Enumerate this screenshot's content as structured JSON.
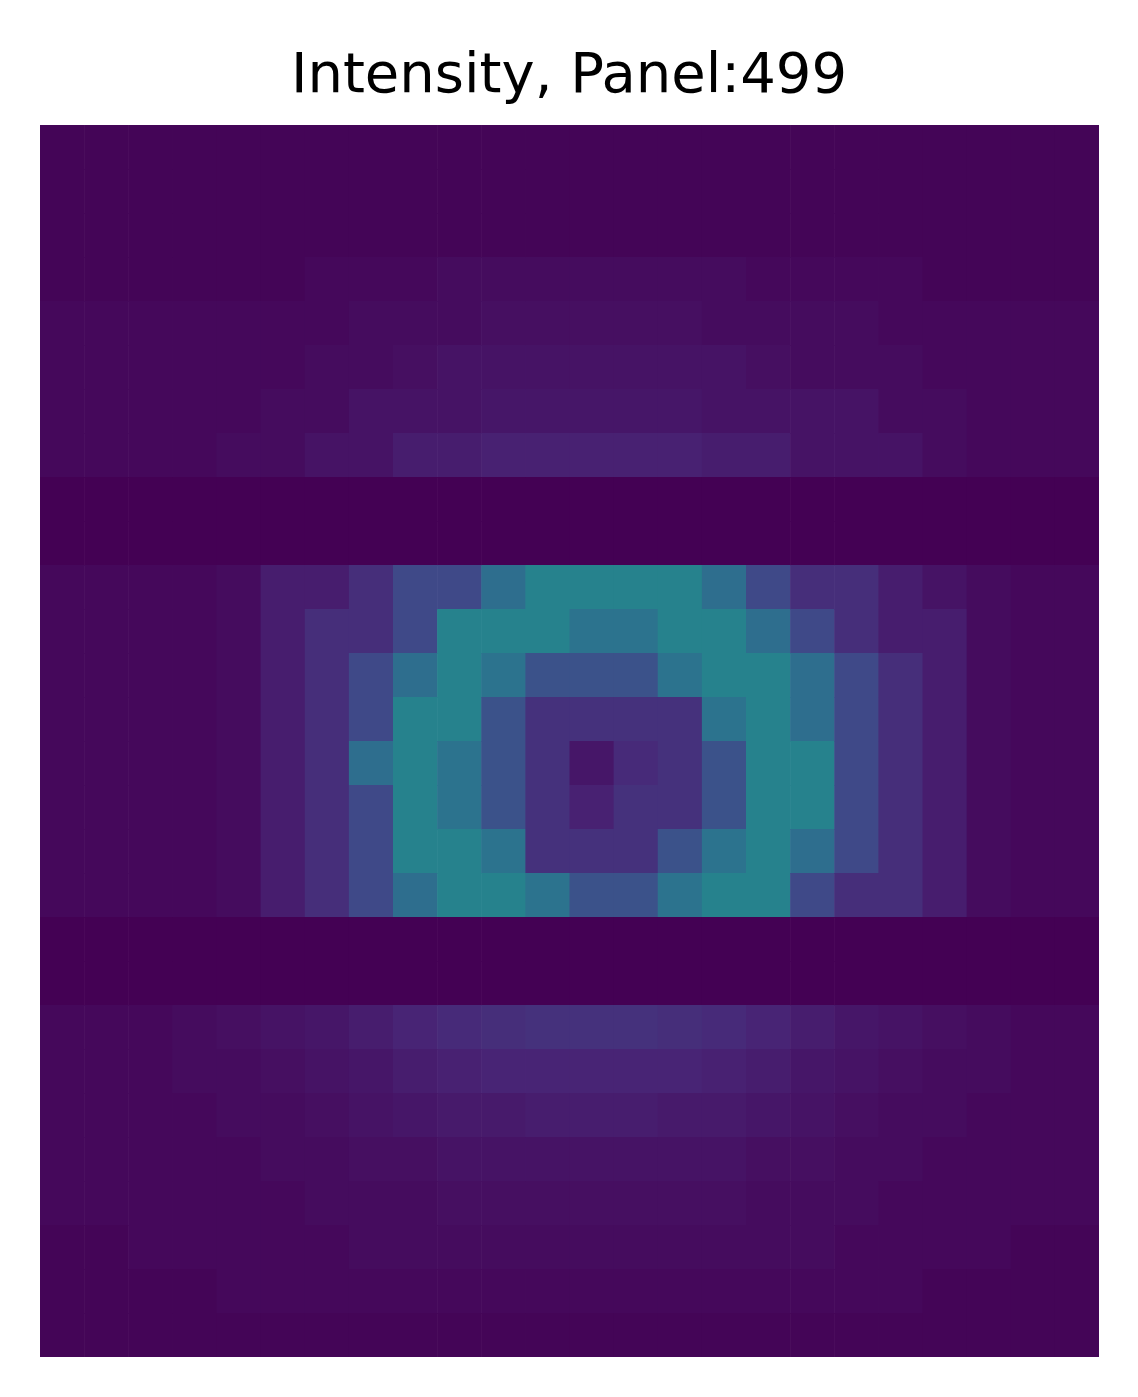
{
  "chart_data": {
    "type": "heatmap",
    "title": "Intensity, Panel:499",
    "tick_labels": false,
    "zlim": [
      0,
      100
    ],
    "cells": [
      [
        1,
        1,
        1,
        1,
        1,
        1,
        1,
        1,
        1,
        1,
        1,
        1,
        1,
        1,
        1,
        1,
        1,
        1,
        1,
        1,
        1,
        1,
        1,
        1
      ],
      [
        1,
        1,
        1,
        1,
        1,
        1,
        1,
        1,
        1,
        1,
        1,
        1,
        1,
        1,
        1,
        1,
        1,
        1,
        1,
        1,
        1,
        1,
        1,
        1
      ],
      [
        1,
        1,
        1,
        1,
        1,
        1,
        1,
        1,
        1,
        1,
        1,
        1,
        1,
        1,
        1,
        1,
        1,
        1,
        1,
        1,
        1,
        1,
        1,
        1
      ],
      [
        1,
        1,
        1,
        1,
        1,
        1,
        2,
        2,
        2,
        3,
        3,
        3,
        3,
        3,
        3,
        3,
        2,
        2,
        2,
        2,
        1,
        1,
        1,
        1
      ],
      [
        2,
        2,
        2,
        2,
        2,
        2,
        2,
        3,
        3,
        3,
        4,
        4,
        4,
        4,
        4,
        3,
        3,
        3,
        3,
        2,
        2,
        2,
        2,
        2
      ],
      [
        2,
        2,
        2,
        2,
        2,
        2,
        3,
        3,
        4,
        5,
        5,
        5,
        5,
        5,
        5,
        5,
        4,
        3,
        3,
        3,
        2,
        2,
        2,
        2
      ],
      [
        2,
        2,
        2,
        2,
        2,
        3,
        3,
        5,
        5,
        5,
        6,
        6,
        6,
        6,
        6,
        5,
        5,
        5,
        5,
        3,
        3,
        2,
        2,
        2
      ],
      [
        2,
        2,
        2,
        2,
        3,
        3,
        5,
        5,
        8,
        8,
        9,
        9,
        9,
        9,
        9,
        8,
        8,
        5,
        5,
        5,
        3,
        2,
        2,
        2
      ],
      [
        0,
        0,
        0,
        0,
        0,
        0,
        0,
        0,
        0,
        0,
        0,
        0,
        0,
        0,
        0,
        0,
        0,
        0,
        0,
        0,
        0,
        0,
        0,
        0
      ],
      [
        0,
        0,
        0,
        0,
        0,
        0,
        0,
        0,
        0,
        0,
        0,
        0,
        0,
        0,
        0,
        0,
        0,
        0,
        0,
        0,
        0,
        0,
        0,
        0
      ],
      [
        2,
        2,
        2,
        2,
        3,
        8,
        8,
        13,
        22,
        22,
        36,
        44,
        44,
        44,
        44,
        36,
        22,
        13,
        13,
        8,
        5,
        3,
        2,
        2
      ],
      [
        2,
        2,
        2,
        2,
        3,
        8,
        13,
        13,
        22,
        44,
        44,
        44,
        38,
        38,
        44,
        44,
        36,
        22,
        13,
        8,
        8,
        3,
        2,
        2
      ],
      [
        2,
        2,
        2,
        2,
        3,
        8,
        13,
        22,
        36,
        44,
        38,
        25,
        25,
        25,
        38,
        44,
        44,
        36,
        22,
        13,
        8,
        3,
        2,
        2
      ],
      [
        2,
        2,
        2,
        2,
        3,
        8,
        13,
        22,
        44,
        44,
        25,
        14,
        14,
        14,
        14,
        38,
        44,
        36,
        22,
        13,
        8,
        3,
        2,
        2
      ],
      [
        2,
        2,
        2,
        2,
        3,
        8,
        13,
        36,
        44,
        38,
        25,
        14,
        6,
        12,
        14,
        25,
        44,
        44,
        22,
        13,
        8,
        3,
        2,
        2
      ],
      [
        2,
        2,
        2,
        2,
        3,
        8,
        13,
        22,
        44,
        38,
        25,
        14,
        9,
        14,
        14,
        25,
        44,
        44,
        22,
        13,
        8,
        3,
        2,
        2
      ],
      [
        2,
        2,
        2,
        2,
        3,
        8,
        13,
        22,
        44,
        44,
        38,
        14,
        14,
        14,
        25,
        38,
        44,
        36,
        22,
        13,
        8,
        3,
        2,
        2
      ],
      [
        2,
        2,
        2,
        2,
        3,
        8,
        13,
        22,
        36,
        44,
        44,
        38,
        25,
        25,
        38,
        44,
        44,
        22,
        13,
        13,
        8,
        3,
        2,
        2
      ],
      [
        0,
        0,
        0,
        0,
        0,
        0,
        0,
        0,
        0,
        0,
        0,
        0,
        0,
        0,
        0,
        0,
        0,
        0,
        0,
        0,
        0,
        0,
        0,
        0
      ],
      [
        0,
        0,
        0,
        0,
        0,
        0,
        0,
        0,
        0,
        0,
        0,
        0,
        0,
        0,
        0,
        0,
        0,
        0,
        0,
        0,
        0,
        0,
        0,
        0
      ],
      [
        2,
        2,
        2,
        3,
        4,
        5,
        6,
        8,
        10,
        12,
        13,
        14,
        14,
        14,
        13,
        12,
        10,
        8,
        6,
        5,
        4,
        3,
        2,
        2
      ],
      [
        2,
        2,
        2,
        3,
        3,
        4,
        5,
        6,
        8,
        9,
        10,
        10,
        10,
        10,
        10,
        9,
        8,
        6,
        5,
        4,
        3,
        3,
        2,
        2
      ],
      [
        2,
        2,
        2,
        2,
        3,
        3,
        4,
        5,
        6,
        7,
        7,
        8,
        8,
        8,
        7,
        7,
        6,
        5,
        4,
        3,
        3,
        2,
        2,
        2
      ],
      [
        2,
        2,
        2,
        2,
        2,
        3,
        3,
        4,
        4,
        5,
        5,
        5,
        5,
        5,
        5,
        5,
        4,
        4,
        3,
        3,
        2,
        2,
        2,
        2
      ],
      [
        2,
        2,
        2,
        2,
        2,
        2,
        3,
        3,
        3,
        4,
        4,
        4,
        4,
        4,
        4,
        4,
        3,
        3,
        3,
        2,
        2,
        2,
        2,
        2
      ],
      [
        1,
        1,
        2,
        2,
        2,
        2,
        2,
        3,
        3,
        3,
        3,
        3,
        3,
        3,
        3,
        3,
        3,
        3,
        2,
        2,
        2,
        2,
        1,
        1
      ],
      [
        1,
        1,
        1,
        1,
        2,
        2,
        2,
        2,
        2,
        2,
        2,
        2,
        2,
        2,
        2,
        2,
        2,
        2,
        2,
        2,
        1,
        1,
        1,
        1
      ],
      [
        1,
        1,
        1,
        1,
        1,
        1,
        1,
        1,
        1,
        1,
        1,
        1,
        1,
        1,
        1,
        1,
        1,
        1,
        1,
        1,
        1,
        1,
        1,
        1
      ]
    ]
  }
}
